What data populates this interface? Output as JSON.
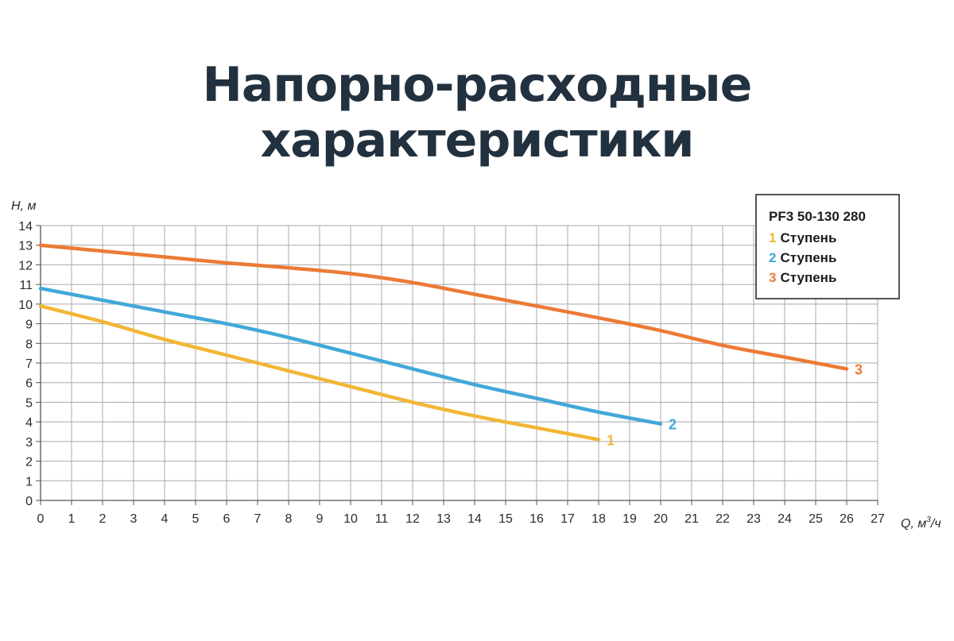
{
  "title": "Напорно-расходные характеристики",
  "chart_data": {
    "type": "line",
    "xlabel_main": "Q, м",
    "xlabel_sup": "3",
    "xlabel_tail": "/ч",
    "ylabel": "H, м",
    "xlim": [
      0,
      27
    ],
    "ylim": [
      0,
      14
    ],
    "x_ticks": [
      0,
      1,
      2,
      3,
      4,
      5,
      6,
      7,
      8,
      9,
      10,
      11,
      12,
      13,
      14,
      15,
      16,
      17,
      18,
      19,
      20,
      21,
      22,
      23,
      24,
      25,
      26,
      27
    ],
    "y_ticks": [
      0,
      1,
      2,
      3,
      4,
      5,
      6,
      7,
      8,
      9,
      10,
      11,
      12,
      13,
      14
    ],
    "grid": true,
    "legend_placement": "top-right",
    "legend_title": "PF3 50-130 280",
    "series": [
      {
        "name": "Ступень",
        "legend_num": "1",
        "end_label": "1",
        "color": "#f2b636",
        "points": [
          [
            0,
            9.9
          ],
          [
            2,
            9.1
          ],
          [
            4,
            8.2
          ],
          [
            6,
            7.4
          ],
          [
            8,
            6.6
          ],
          [
            10,
            5.8
          ],
          [
            12,
            5.0
          ],
          [
            14,
            4.3
          ],
          [
            16,
            3.7
          ],
          [
            18,
            3.1
          ]
        ]
      },
      {
        "name": "Ступень",
        "legend_num": "2",
        "end_label": "2",
        "color": "#42a8d8",
        "points": [
          [
            0,
            10.8
          ],
          [
            2,
            10.2
          ],
          [
            4,
            9.6
          ],
          [
            6,
            9.0
          ],
          [
            8,
            8.3
          ],
          [
            10,
            7.5
          ],
          [
            12,
            6.7
          ],
          [
            14,
            5.9
          ],
          [
            16,
            5.2
          ],
          [
            18,
            4.5
          ],
          [
            20,
            3.9
          ]
        ]
      },
      {
        "name": "Ступень",
        "legend_num": "3",
        "end_label": "3",
        "color": "#ec7a35",
        "points": [
          [
            0,
            13.0
          ],
          [
            2,
            12.7
          ],
          [
            4,
            12.4
          ],
          [
            6,
            12.1
          ],
          [
            8,
            11.85
          ],
          [
            10,
            11.55
          ],
          [
            12,
            11.1
          ],
          [
            14,
            10.5
          ],
          [
            16,
            9.9
          ],
          [
            18,
            9.3
          ],
          [
            20,
            8.65
          ],
          [
            22,
            7.9
          ],
          [
            24,
            7.3
          ],
          [
            26,
            6.7
          ]
        ]
      }
    ]
  }
}
